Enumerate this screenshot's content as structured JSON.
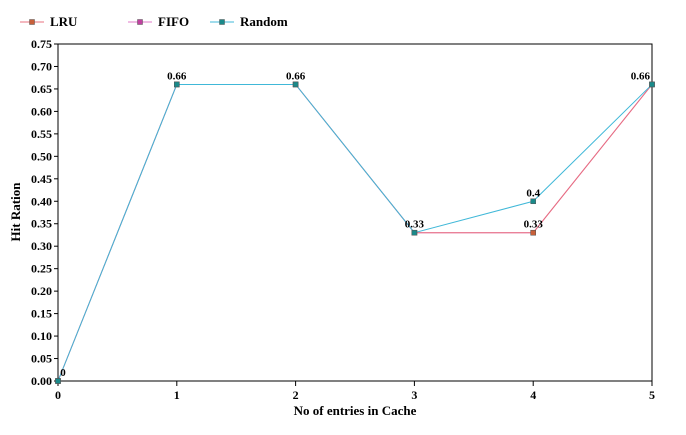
{
  "chart_data": {
    "type": "line",
    "title": "",
    "xlabel": "No of entries in Cache",
    "ylabel": "Hit Ration",
    "x": [
      0,
      1,
      2,
      3,
      4,
      5
    ],
    "xlim": [
      0,
      5
    ],
    "ylim": [
      0,
      0.75
    ],
    "x_ticks": [
      "0",
      "1",
      "2",
      "3",
      "4",
      "5"
    ],
    "y_ticks": [
      "0.00",
      "0.05",
      "0.10",
      "0.15",
      "0.20",
      "0.25",
      "0.30",
      "0.35",
      "0.40",
      "0.45",
      "0.50",
      "0.55",
      "0.60",
      "0.65",
      "0.70",
      "0.75"
    ],
    "grid": false,
    "legend_position": "top-left",
    "series": [
      {
        "name": "LRU",
        "values": [
          0,
          0.66,
          0.66,
          0.33,
          0.33,
          0.66
        ],
        "color": "#e8707f",
        "marker_color": "#c8603a"
      },
      {
        "name": "FIFO",
        "values": [
          0,
          0.66,
          0.66,
          0.33,
          0.33,
          0.66
        ],
        "color": "#e078c8",
        "marker_color": "#c040a0"
      },
      {
        "name": "Random",
        "values": [
          0,
          0.66,
          0.66,
          0.33,
          0.4,
          0.66
        ],
        "color": "#40b8d8",
        "marker_color": "#1a8a8a"
      }
    ],
    "data_labels": [
      {
        "x": 0,
        "y": 0,
        "text": "0"
      },
      {
        "x": 1,
        "y": 0.66,
        "text": "0.66"
      },
      {
        "x": 2,
        "y": 0.66,
        "text": "0.66"
      },
      {
        "x": 3,
        "y": 0.33,
        "text": "0.33"
      },
      {
        "x": 4,
        "y": 0.4,
        "text": "0.4"
      },
      {
        "x": 4,
        "y": 0.33,
        "text": "0.33"
      },
      {
        "x": 5,
        "y": 0.66,
        "text": "0.66"
      }
    ]
  }
}
